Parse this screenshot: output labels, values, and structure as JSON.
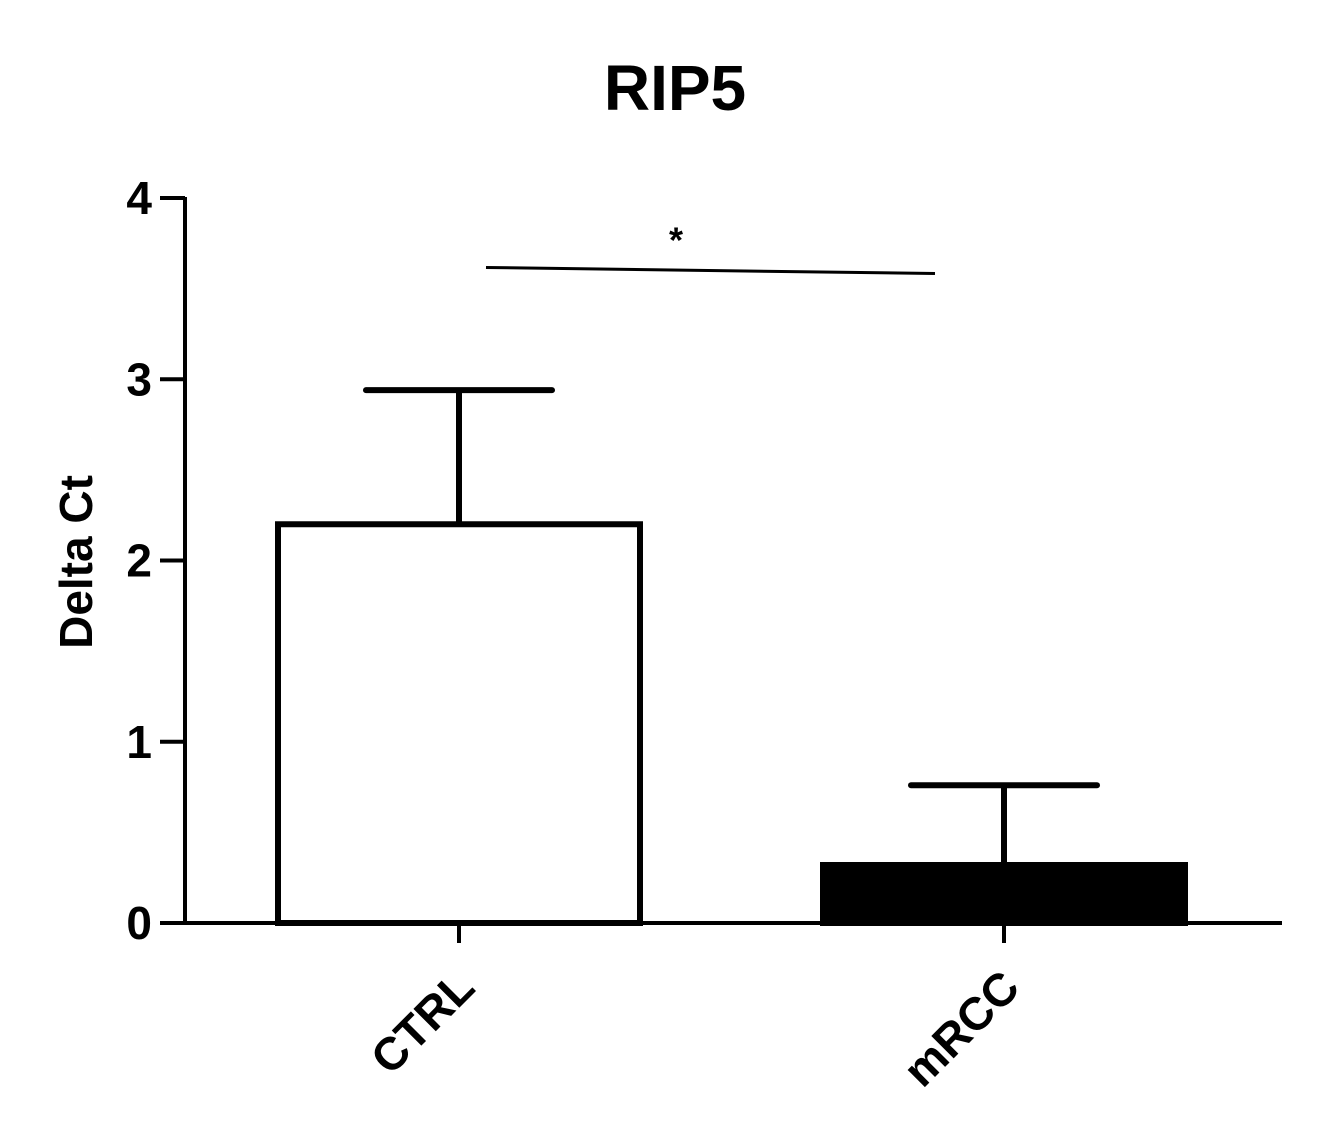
{
  "chart_data": {
    "type": "bar",
    "title": "RIP5",
    "xlabel": "",
    "ylabel": "Delta Ct",
    "ylim": [
      0,
      4
    ],
    "yticks": [
      0,
      1,
      2,
      3,
      4
    ],
    "ytick_labels": [
      "0",
      "1",
      "2",
      "3",
      "4"
    ],
    "categories": [
      "CTRL",
      "mRCC"
    ],
    "values": [
      2.2,
      0.32
    ],
    "error_upper": [
      2.94,
      0.76
    ],
    "bar_fills": [
      "#ffffff",
      "#000000"
    ],
    "significance": {
      "between": [
        "CTRL",
        "mRCC"
      ],
      "label": "*",
      "y": 3.6
    },
    "grid": false,
    "legend": "none"
  }
}
